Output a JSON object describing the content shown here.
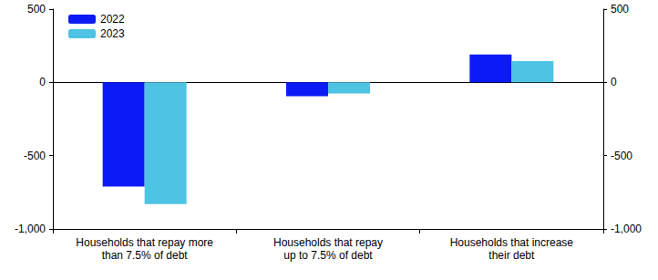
{
  "chart_data": {
    "type": "bar",
    "categories": [
      "Households that repay more\nthan 7.5% of debt",
      "Households that repay\nup to 7.5% of debt",
      "Households that increase\ntheir debt"
    ],
    "series": [
      {
        "name": "2022",
        "color": "#0c1bf5",
        "values": [
          -710,
          -95,
          190
        ]
      },
      {
        "name": "2023",
        "color": "#4fc3e3",
        "values": [
          -830,
          -75,
          145
        ]
      }
    ],
    "ylim": [
      -1000,
      500
    ],
    "yticks": [
      -1000,
      -500,
      0,
      500
    ],
    "y2lim": [
      -1000,
      500
    ],
    "y2ticks": [
      -1000,
      -500,
      0,
      500
    ],
    "grid": false,
    "legend": "upper left"
  }
}
